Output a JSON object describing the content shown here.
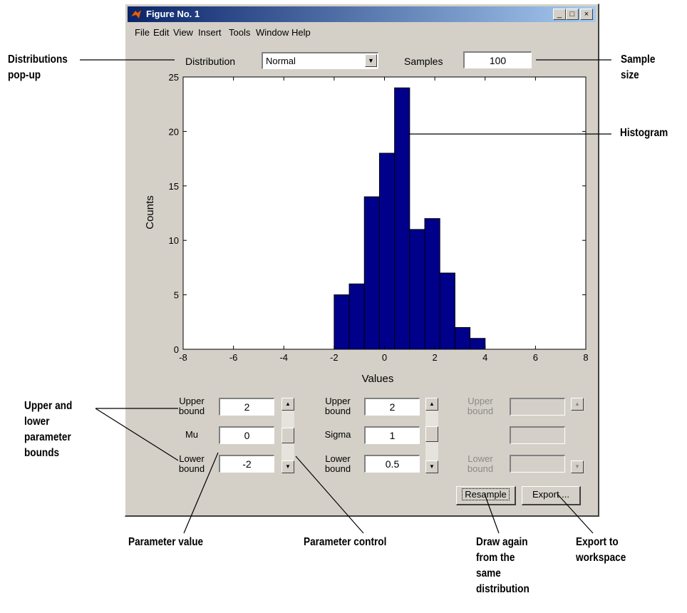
{
  "window": {
    "title": "Figure No. 1",
    "menu": [
      "File",
      "Edit",
      "View",
      "Insert",
      "Tools",
      "Window",
      "Help"
    ]
  },
  "controls": {
    "distribution_label": "Distribution",
    "distribution_value": "Normal",
    "samples_label": "Samples",
    "samples_value": "100"
  },
  "chart_data": {
    "type": "bar",
    "xlabel": "Values",
    "ylabel": "Counts",
    "xlim": [
      -8,
      8
    ],
    "ylim": [
      0,
      25
    ],
    "xticks": [
      "-8",
      "-6",
      "-4",
      "-2",
      "0",
      "2",
      "4",
      "6",
      "8"
    ],
    "yticks": [
      "0",
      "5",
      "10",
      "15",
      "20",
      "25"
    ],
    "bin_width": 0.6,
    "bins": [
      {
        "x0": -2.0,
        "count": 5
      },
      {
        "x0": -1.4,
        "count": 6
      },
      {
        "x0": -0.8,
        "count": 14
      },
      {
        "x0": -0.2,
        "count": 18
      },
      {
        "x0": 0.4,
        "count": 24
      },
      {
        "x0": 1.0,
        "count": 11
      },
      {
        "x0": 1.6,
        "count": 12
      },
      {
        "x0": 2.2,
        "count": 7
      },
      {
        "x0": 2.8,
        "count": 2
      },
      {
        "x0": 3.4,
        "count": 1
      }
    ],
    "bar_color": "#00008b"
  },
  "params": {
    "p1": {
      "upper_label": "Upper\nbound",
      "upper": "2",
      "name": "Mu",
      "value": "0",
      "lower_label": "Lower\nbound",
      "lower": "-2"
    },
    "p2": {
      "upper_label": "Upper\nbound",
      "upper": "2",
      "name": "Sigma",
      "value": "1",
      "lower_label": "Lower\nbound",
      "lower": "0.5"
    },
    "p3": {
      "upper_label": "Upper\nbound",
      "lower_label": "Lower\nbound"
    }
  },
  "buttons": {
    "resample": "Resample",
    "export": "Export ..."
  },
  "annotations": {
    "distributions": "Distributions\npop-up",
    "sample_size": "Sample\nsize",
    "histogram": "Histogram",
    "bounds": "Upper and\nlower\nparameter\nbounds",
    "param_value": "Parameter value",
    "param_control": "Parameter control",
    "draw_again": "Draw again\nfrom the\nsame\ndistribution",
    "export_ws": "Export to\nworkspace"
  }
}
